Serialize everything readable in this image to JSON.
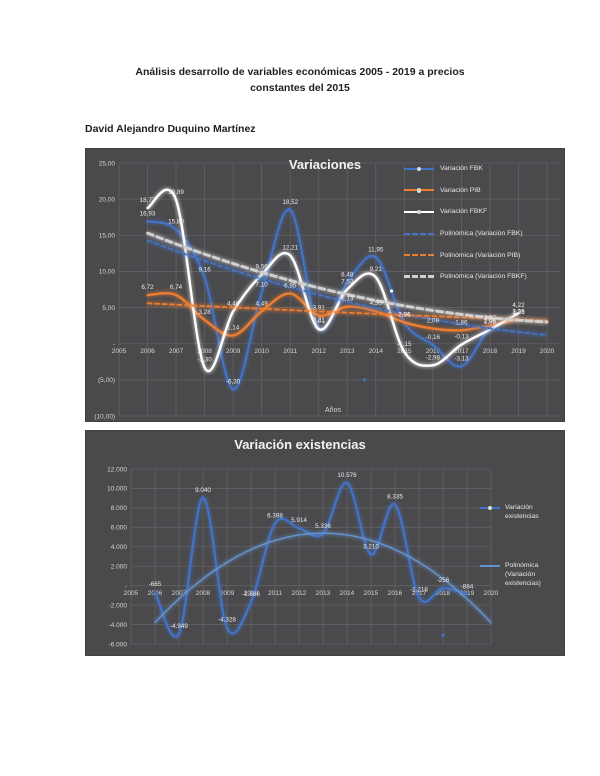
{
  "page": {
    "title_line1": "Análisis desarrollo de variables económicas 2005 - 2019 a precios",
    "title_line2": "constantes del 2015",
    "author": "David Alejandro Duquino Martínez"
  },
  "colors": {
    "chart_bg": "#4a4a4c",
    "grid": "#626266",
    "tick": "#d6d6d6",
    "label": "#ececec",
    "blue": "#4472c4",
    "orange": "#ed7d31",
    "white": "#ffffff",
    "gray_dash": "#d0d0d0",
    "blue_poly2": "#6593cf"
  },
  "chart_data": [
    {
      "type": "line",
      "title": "Variaciones",
      "xlabel": "Años",
      "x_ticks": [
        2005,
        2006,
        2007,
        2008,
        2009,
        2010,
        2011,
        2012,
        2013,
        2014,
        2015,
        2016,
        2017,
        2018,
        2019,
        2020
      ],
      "y_tick_values": [
        25,
        20,
        15,
        10,
        5,
        0,
        -5,
        -10
      ],
      "y_tick_labels": [
        "25,00",
        "20,00",
        "15,00",
        "10,00",
        "5,00",
        "-",
        "(5,00)",
        "(10,00)"
      ],
      "ylim": [
        -10,
        25
      ],
      "years": [
        2006,
        2007,
        2008,
        2009,
        2010,
        2011,
        2012,
        2013,
        2014,
        2015,
        2016,
        2017,
        2018,
        2019
      ],
      "series": [
        {
          "name": "Variación FBK",
          "color_key": "blue",
          "style": "solid",
          "width": 2.2,
          "markers": true,
          "values": [
            16.93,
            15.8,
            9.16,
            -6.3,
            7.1,
            18.52,
            2.21,
            8.48,
            11.95,
            2.91,
            -0.16,
            -3.13,
            2.06,
            3.26
          ],
          "labels": [
            "16,93",
            "15,80",
            "9,16",
            "-6,30",
            "7,10",
            "18,52",
            "2,21",
            "8,48",
            "11,95",
            "2,91",
            "-0,16",
            "-3,13",
            "2,06",
            "3,26"
          ]
        },
        {
          "name": "Variación PIB",
          "color_key": "orange",
          "style": "solid",
          "width": 2.4,
          "markers": false,
          "values": [
            6.72,
            6.74,
            3.28,
            1.14,
            4.49,
            6.95,
            3.91,
            5.13,
            4.5,
            2.96,
            2.09,
            1.86,
            2.52,
            3.36
          ],
          "labels": [
            "6,72",
            "6,74",
            "3,28",
            "1,14",
            "4,49",
            "6,95",
            "3,91",
            "5,13",
            "4,50",
            "2,96",
            "2,09",
            "1,86",
            "2,52",
            "3,36"
          ]
        },
        {
          "name": "Variación FBKF",
          "color_key": "white",
          "style": "solid",
          "width": 2.4,
          "markers": false,
          "values": [
            18.77,
            19.89,
            -3.3,
            4.46,
            9.56,
            12.21,
            2.01,
            7.53,
            9.21,
            -1.15,
            -2.98,
            -0.13,
            1.96,
            4.22
          ],
          "labels": [
            "18,77",
            "19,89",
            "-3,30",
            "4,46",
            "9,56",
            "12,21",
            "2,01",
            "7,53",
            "9,21",
            "-1,15",
            "-2,98",
            "-0,13",
            "1,96",
            "4,22"
          ]
        },
        {
          "name": "Polinómica (Variación FBK)",
          "color_key": "blue",
          "style": "dashed",
          "width": 1.8,
          "dash": "4,3.5",
          "poly": [
            [
              2006,
              14.3
            ],
            [
              2013,
              5.8
            ],
            [
              2020,
              1.2
            ]
          ]
        },
        {
          "name": "Polinómica (Variación PIB)",
          "color_key": "orange",
          "style": "dashed",
          "width": 1.8,
          "dash": "4,3.5",
          "poly": [
            [
              2006,
              5.6
            ],
            [
              2013,
              4.3
            ],
            [
              2020,
              3.2
            ]
          ]
        },
        {
          "name": "Polinómica (Variación FBKF)",
          "color_key": "gray_dash",
          "style": "dashed",
          "width": 3,
          "dash": "6,4",
          "poly": [
            [
              2006,
              15.3
            ],
            [
              2013,
              6.8
            ],
            [
              2020,
              3.0
            ]
          ]
        }
      ],
      "stray_points": [
        {
          "color_key": "blue",
          "x": 2013.6,
          "v": -5.0
        },
        {
          "color_key": "white",
          "x": 2014.55,
          "v": 7.3
        }
      ]
    },
    {
      "type": "line",
      "title": "Variación existencias",
      "xlabel": "",
      "x_ticks": [
        2005,
        2006,
        2007,
        2008,
        2009,
        2010,
        2011,
        2012,
        2013,
        2014,
        2015,
        2016,
        2017,
        2018,
        2019,
        2020
      ],
      "y_tick_values": [
        12000,
        10000,
        8000,
        6000,
        4000,
        2000,
        0,
        -2000,
        -4000,
        -6000
      ],
      "y_tick_labels": [
        "12.000",
        "10.000",
        "8.000",
        "6.000",
        "4.000",
        "2.000",
        "-",
        "-2.000",
        "-4.000",
        "-6.000"
      ],
      "ylim": [
        -6000,
        12000
      ],
      "years": [
        2006,
        2007,
        2008,
        2009,
        2010,
        2011,
        2012,
        2013,
        2014,
        2015,
        2016,
        2017,
        2018,
        2019
      ],
      "series": [
        {
          "name": "Variación existencias",
          "color_key": "blue",
          "style": "solid",
          "width": 2.2,
          "markers": true,
          "values": [
            -665,
            -4949,
            9040,
            -4328,
            -1686,
            6398,
            5914,
            5336,
            10576,
            3210,
            8335,
            -1218,
            -256,
            -884
          ],
          "labels": [
            "-665",
            "-4.949",
            "9.040",
            "-4.328",
            "-1.686",
            "6.398",
            "5.914",
            "5.336",
            "10.576",
            "3.210",
            "8.335",
            "-1.218",
            "-256",
            "-884"
          ]
        },
        {
          "name": "Polinómica (Variación existencias)",
          "color_key": "blue_poly2",
          "style": "solid-thin",
          "width": 1.4,
          "poly": [
            [
              2006,
              -3800
            ],
            [
              2013,
              5400
            ],
            [
              2020,
              -3800
            ]
          ]
        }
      ],
      "stray_points": [
        {
          "color_key": "blue",
          "x": 2018,
          "v": -5100
        }
      ]
    }
  ]
}
